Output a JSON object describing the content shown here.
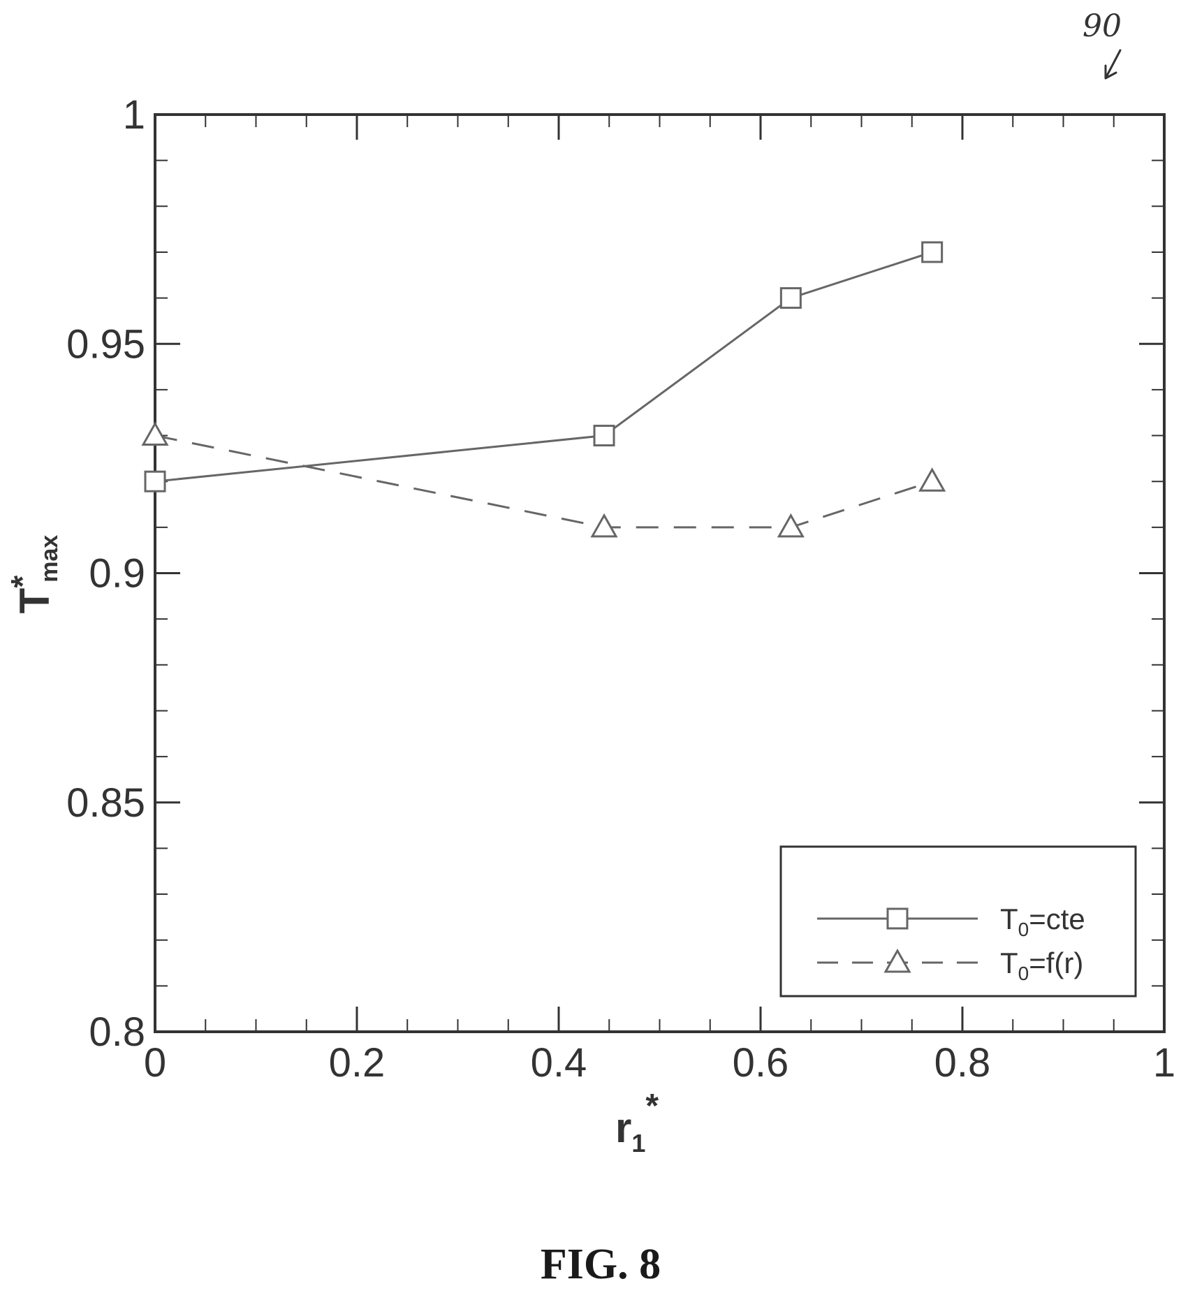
{
  "chart_data": {
    "type": "line",
    "title": "",
    "xlabel": {
      "main": "r",
      "sub": "1",
      "sup": "*"
    },
    "ylabel": {
      "main": "T",
      "sup": "*",
      "sub": "max"
    },
    "xlim": [
      0,
      1
    ],
    "ylim": [
      0.8,
      1
    ],
    "xticks": [
      {
        "value": 0,
        "label": "0"
      },
      {
        "value": 0.2,
        "label": "0.2"
      },
      {
        "value": 0.4,
        "label": "0.4"
      },
      {
        "value": 0.6,
        "label": "0.6"
      },
      {
        "value": 0.8,
        "label": "0.8"
      },
      {
        "value": 1,
        "label": "1"
      }
    ],
    "yticks": [
      {
        "value": 0.8,
        "label": "0.8"
      },
      {
        "value": 0.85,
        "label": "0.85"
      },
      {
        "value": 0.9,
        "label": "0.9"
      },
      {
        "value": 0.95,
        "label": "0.95"
      },
      {
        "value": 1,
        "label": "1"
      }
    ],
    "x_minor_step": 0.05,
    "y_minor_step": 0.01,
    "grid": false,
    "legend_position": "bottom-right",
    "series": [
      {
        "label_main": "T",
        "label_sub": "0",
        "label_rest": "=cte",
        "marker": "square",
        "line_style": "solid",
        "x": [
          0,
          0.445,
          0.63,
          0.77
        ],
        "y": [
          0.92,
          0.93,
          0.96,
          0.97
        ]
      },
      {
        "label_main": "T",
        "label_sub": "0",
        "label_rest": "=f(r)",
        "marker": "triangle",
        "line_style": "dashed",
        "x": [
          0,
          0.445,
          0.63,
          0.77
        ],
        "y": [
          0.93,
          0.91,
          0.91,
          0.92
        ]
      }
    ],
    "colors": {
      "line": "#666666",
      "axis": "#333333"
    }
  },
  "figure_label": "FIG. 8",
  "reference_number": "90"
}
